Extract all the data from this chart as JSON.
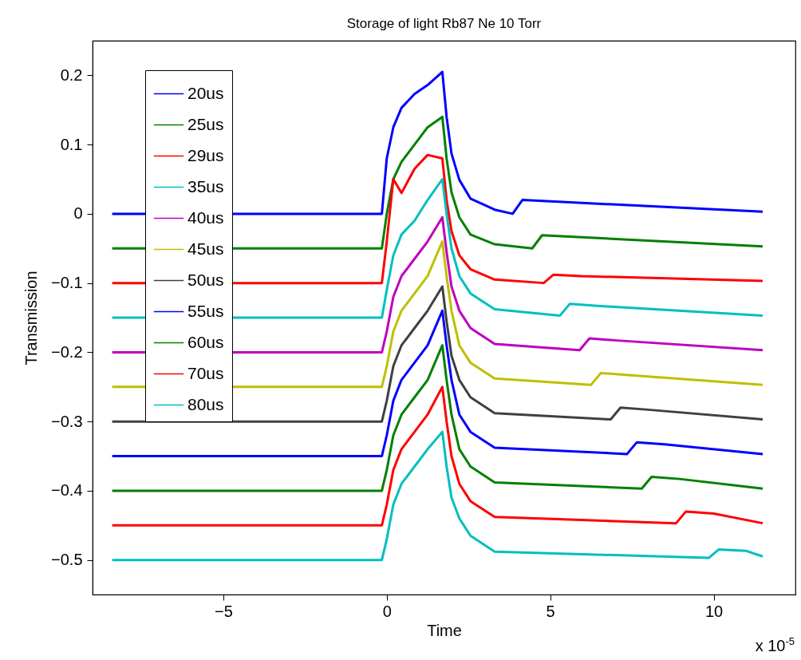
{
  "chart_data": {
    "type": "line",
    "title": "Storage of light Rb87 Ne 10 Torr",
    "xlabel": "Time",
    "ylabel": "Transmission",
    "annotations": [
      "x 10$^{-5}$"
    ],
    "xlim": [
      -9,
      12.5
    ],
    "ylim": [
      -0.55,
      0.25
    ],
    "xticks": [
      -5,
      0,
      5,
      10
    ],
    "yticks": [
      -0.5,
      -0.4,
      -0.3,
      -0.2,
      -0.1,
      0,
      0.1,
      0.2
    ],
    "grid": false,
    "legend": "top left",
    "line_style": "solid",
    "series": [
      {
        "name": "20us",
        "color": "#0000ff",
        "x": [
          -8.4,
          -0.15,
          0,
          0.2,
          0.45,
          0.85,
          1.25,
          1.7,
          1.83,
          1.98,
          2.22,
          2.56,
          3.3,
          3.85,
          4.15,
          5,
          11.5
        ],
        "values": [
          0,
          0,
          0.08,
          0.125,
          0.153,
          0.173,
          0.186,
          0.205,
          0.14,
          0.087,
          0.049,
          0.022,
          0.006,
          0,
          0.02,
          0.018,
          0.003
        ]
      },
      {
        "name": "25us",
        "color": "#008000",
        "x": [
          -8.4,
          -0.15,
          0,
          0.2,
          0.45,
          0.85,
          1.25,
          1.7,
          1.83,
          1.98,
          2.22,
          2.56,
          3.3,
          4.45,
          4.75,
          5.6,
          11.5
        ],
        "values": [
          -0.05,
          -0.05,
          0,
          0.05,
          0.075,
          0.1,
          0.125,
          0.14,
          0.08,
          0.031,
          -0.005,
          -0.03,
          -0.044,
          -0.05,
          -0.031,
          -0.033,
          -0.047
        ]
      },
      {
        "name": "29us",
        "color": "#ff0000",
        "x": [
          -8.4,
          -0.15,
          0,
          0.2,
          0.45,
          0.85,
          1.25,
          1.7,
          1.83,
          1.98,
          2.22,
          2.56,
          3.3,
          4.8,
          5.1,
          5.95,
          11.5
        ],
        "values": [
          -0.1,
          -0.1,
          -0.04,
          0.05,
          0.03,
          0.065,
          0.085,
          0.08,
          0.02,
          -0.025,
          -0.06,
          -0.08,
          -0.095,
          -0.1,
          -0.088,
          -0.09,
          -0.097
        ]
      },
      {
        "name": "35us",
        "color": "#00bfbf",
        "x": [
          -8.4,
          -0.15,
          0,
          0.2,
          0.45,
          0.85,
          1.25,
          1.7,
          1.83,
          1.98,
          2.22,
          2.56,
          3.3,
          5.3,
          5.6,
          6.45,
          11.5
        ],
        "values": [
          -0.15,
          -0.15,
          -0.11,
          -0.06,
          -0.03,
          -0.01,
          0.02,
          0.05,
          0,
          -0.05,
          -0.09,
          -0.115,
          -0.138,
          -0.147,
          -0.13,
          -0.133,
          -0.147
        ]
      },
      {
        "name": "40us",
        "color": "#bf00bf",
        "x": [
          -8.4,
          -0.15,
          0,
          0.2,
          0.45,
          0.85,
          1.25,
          1.7,
          1.83,
          1.98,
          2.22,
          2.56,
          3.3,
          5.9,
          6.2,
          7.05,
          11.5
        ],
        "values": [
          -0.2,
          -0.2,
          -0.17,
          -0.12,
          -0.09,
          -0.065,
          -0.04,
          -0.005,
          -0.055,
          -0.105,
          -0.14,
          -0.165,
          -0.188,
          -0.197,
          -0.18,
          -0.183,
          -0.197
        ]
      },
      {
        "name": "45us",
        "color": "#bfbf00",
        "x": [
          -8.4,
          -0.15,
          0,
          0.2,
          0.45,
          0.85,
          1.25,
          1.7,
          1.83,
          1.98,
          2.22,
          2.56,
          3.3,
          6.25,
          6.55,
          7.4,
          11.5
        ],
        "values": [
          -0.25,
          -0.25,
          -0.22,
          -0.17,
          -0.14,
          -0.115,
          -0.09,
          -0.04,
          -0.09,
          -0.14,
          -0.19,
          -0.215,
          -0.238,
          -0.247,
          -0.23,
          -0.233,
          -0.247
        ]
      },
      {
        "name": "50us",
        "color": "#404040",
        "x": [
          -8.4,
          -0.15,
          0,
          0.2,
          0.45,
          0.85,
          1.25,
          1.7,
          1.83,
          1.98,
          2.22,
          2.56,
          3.3,
          6.85,
          7.15,
          8,
          11.5
        ],
        "values": [
          -0.3,
          -0.3,
          -0.27,
          -0.22,
          -0.19,
          -0.165,
          -0.14,
          -0.105,
          -0.155,
          -0.205,
          -0.24,
          -0.265,
          -0.288,
          -0.297,
          -0.28,
          -0.283,
          -0.297
        ]
      },
      {
        "name": "55us",
        "color": "#0000ff",
        "x": [
          -8.4,
          -0.15,
          0,
          0.2,
          0.45,
          0.85,
          1.25,
          1.7,
          1.83,
          1.98,
          2.22,
          2.56,
          3.3,
          7.35,
          7.65,
          8.5,
          11.5
        ],
        "values": [
          -0.35,
          -0.35,
          -0.32,
          -0.27,
          -0.24,
          -0.215,
          -0.19,
          -0.14,
          -0.19,
          -0.24,
          -0.29,
          -0.315,
          -0.338,
          -0.347,
          -0.33,
          -0.333,
          -0.347
        ]
      },
      {
        "name": "60us",
        "color": "#008000",
        "x": [
          -8.4,
          -0.15,
          0,
          0.2,
          0.45,
          0.85,
          1.25,
          1.7,
          1.83,
          1.98,
          2.22,
          2.56,
          3.3,
          7.8,
          8.1,
          8.95,
          11.5
        ],
        "values": [
          -0.4,
          -0.4,
          -0.37,
          -0.32,
          -0.29,
          -0.265,
          -0.24,
          -0.19,
          -0.24,
          -0.29,
          -0.34,
          -0.365,
          -0.388,
          -0.397,
          -0.38,
          -0.383,
          -0.397
        ]
      },
      {
        "name": "70us",
        "color": "#ff0000",
        "x": [
          -8.4,
          -0.15,
          0,
          0.2,
          0.45,
          0.85,
          1.25,
          1.7,
          1.83,
          1.98,
          2.22,
          2.56,
          3.3,
          8.85,
          9.15,
          10,
          11.5
        ],
        "values": [
          -0.45,
          -0.45,
          -0.42,
          -0.37,
          -0.34,
          -0.315,
          -0.29,
          -0.25,
          -0.3,
          -0.35,
          -0.39,
          -0.415,
          -0.438,
          -0.447,
          -0.43,
          -0.433,
          -0.447
        ]
      },
      {
        "name": "80us",
        "color": "#00bfbf",
        "x": [
          -8.4,
          -0.15,
          0,
          0.2,
          0.45,
          0.85,
          1.25,
          1.7,
          1.83,
          1.98,
          2.22,
          2.56,
          3.3,
          9.85,
          10.15,
          11,
          11.5
        ],
        "values": [
          -0.5,
          -0.5,
          -0.47,
          -0.42,
          -0.39,
          -0.365,
          -0.34,
          -0.315,
          -0.365,
          -0.41,
          -0.44,
          -0.465,
          -0.488,
          -0.497,
          -0.485,
          -0.487,
          -0.495
        ]
      }
    ]
  }
}
